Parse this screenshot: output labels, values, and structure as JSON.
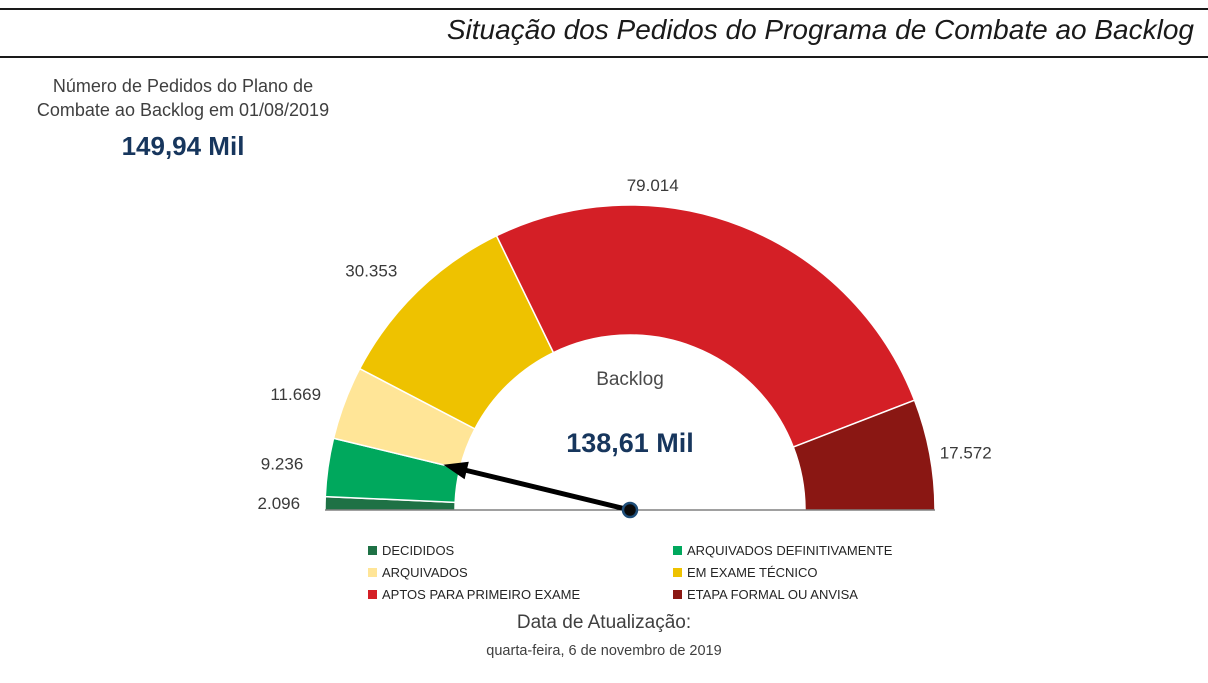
{
  "header": {
    "title": "Situação dos Pedidos do Programa de Combate ao Backlog"
  },
  "kpi": {
    "label_line1": "Número de Pedidos do Plano de",
    "label_line2": "Combate ao Backlog em 01/08/2019",
    "value": "149,94 Mil"
  },
  "gauge": {
    "center_label": "Backlog",
    "center_value": "138,61 Mil"
  },
  "footer": {
    "label": "Data de Atualização:",
    "date": "quarta-feira, 6 de novembro de 2019"
  },
  "chart_data": {
    "type": "gauge",
    "title": "Situação dos Pedidos do Programa de Combate ao Backlog",
    "arc_degrees": 180,
    "total": 149940,
    "total_display": "149,94 Mil",
    "needle_label": "Backlog",
    "needle_value": 138610,
    "needle_display": "138,61 Mil",
    "segments": [
      {
        "label": "DECIDIDOS",
        "value": 2096,
        "display": "2.096",
        "color": "#1e7145"
      },
      {
        "label": "ARQUIVADOS DEFINITIVAMENTE",
        "value": 9236,
        "display": "9.236",
        "color": "#00a85d"
      },
      {
        "label": "ARQUIVADOS",
        "value": 11669,
        "display": "11.669",
        "color": "#ffe597"
      },
      {
        "label": "EM EXAME TÉCNICO",
        "value": 30353,
        "display": "30.353",
        "color": "#eec200"
      },
      {
        "label": "APTOS PARA PRIMEIRO EXAME",
        "value": 79014,
        "display": "79.014",
        "color": "#d41f26"
      },
      {
        "label": "ETAPA FORMAL OU ANVISA",
        "value": 17572,
        "display": "17.572",
        "color": "#8a1713"
      }
    ]
  }
}
